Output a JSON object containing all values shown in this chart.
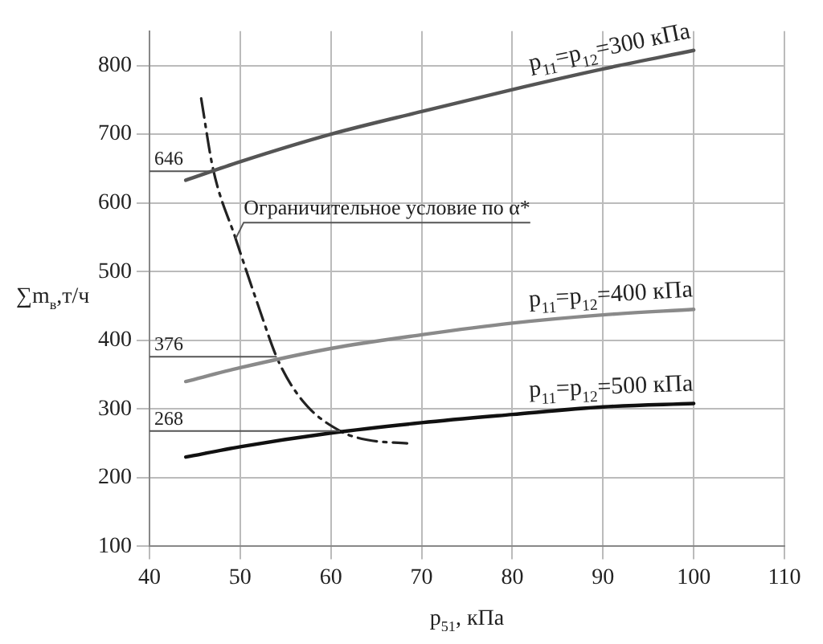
{
  "chart_data": {
    "type": "line",
    "xlabel": "p$_{51}$, кПа",
    "ylabel": "∑m$_{в}$,т/ч",
    "xlim": [
      40,
      110
    ],
    "xticks": [
      40,
      50,
      60,
      70,
      80,
      90,
      100,
      110
    ],
    "ylim": [
      100,
      850
    ],
    "yticks": [
      100,
      200,
      300,
      400,
      500,
      600,
      700,
      800
    ],
    "grid": true,
    "legend": false,
    "marker": "none",
    "series": [
      {
        "name": "p$_{11}$=p$_{12}$=300 кПа",
        "color": "#555555",
        "x": [
          44,
          50,
          60,
          70,
          80,
          90,
          100
        ],
        "values": [
          633,
          660,
          700,
          733,
          765,
          795,
          822
        ]
      },
      {
        "name": "p$_{11}$=p$_{12}$=400 кПа",
        "color": "#8a8a8a",
        "x": [
          44,
          50,
          60,
          70,
          80,
          90,
          100
        ],
        "values": [
          340,
          360,
          388,
          408,
          425,
          437,
          445
        ]
      },
      {
        "name": "p$_{11}$=p$_{12}$=500 кПа",
        "color": "#111111",
        "x": [
          44,
          50,
          60,
          70,
          80,
          90,
          100
        ],
        "values": [
          230,
          245,
          265,
          280,
          292,
          303,
          308
        ]
      },
      {
        "color": "#222222",
        "line_style": "dashed",
        "x": [
          45.7,
          47,
          49.5,
          52,
          54.2,
          57,
          61,
          64,
          68.4
        ],
        "values": [
          752,
          650,
          548,
          450,
          370,
          310,
          268,
          255,
          250
        ]
      }
    ],
    "ref_lines": [
      {
        "axis": "y",
        "value": 646,
        "label": "646"
      },
      {
        "axis": "y",
        "value": 376,
        "label": "376"
      },
      {
        "axis": "y",
        "value": 268,
        "label": "268"
      }
    ],
    "annotations": [
      {
        "text": "Ограничительное условие по α*",
        "x": 49.5,
        "y": 548
      }
    ]
  }
}
